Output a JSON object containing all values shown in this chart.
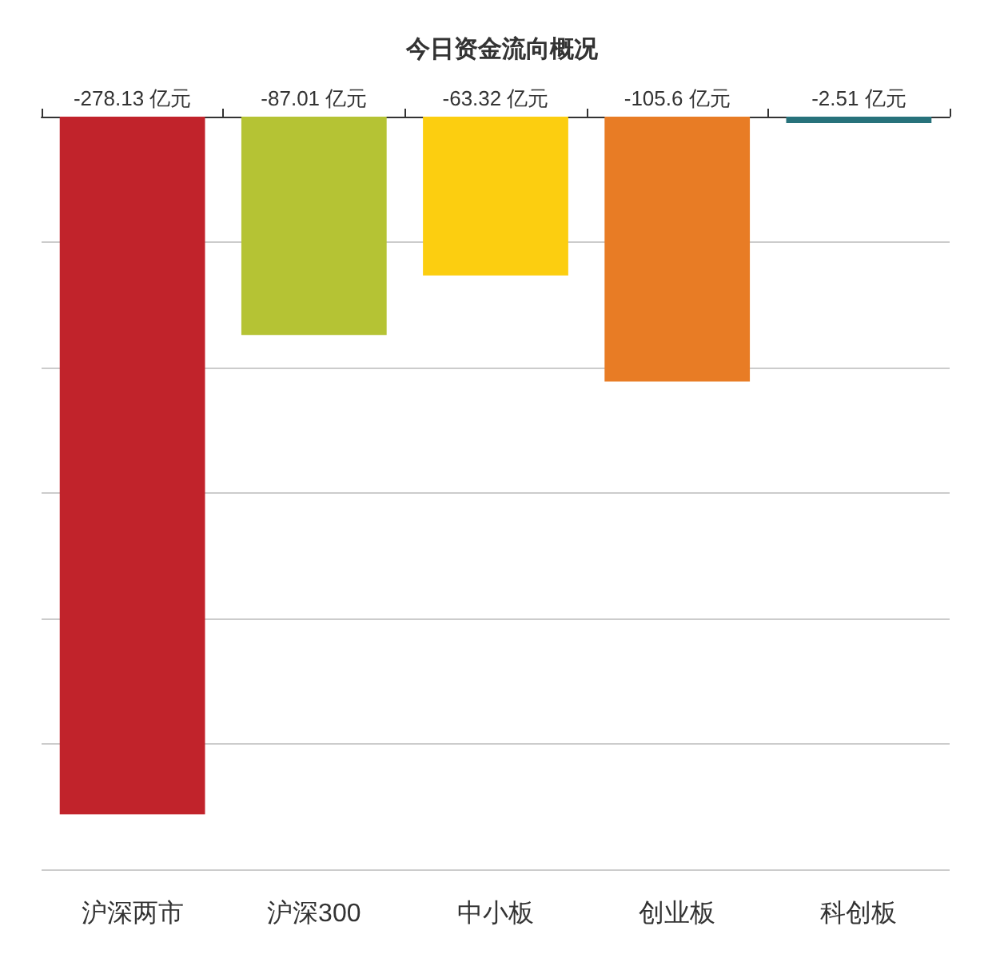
{
  "chart_data": {
    "type": "bar",
    "title": "今日资金流向概况",
    "categories": [
      "沪深两市",
      "沪深300",
      "中小板",
      "创业板",
      "科创板"
    ],
    "values": [
      -278.13,
      -87.01,
      -63.32,
      -105.6,
      -2.51
    ],
    "value_labels": [
      "-278.13 亿元",
      "-87.01 亿元",
      "-63.32 亿元",
      "-105.6 亿元",
      "-2.51 亿元"
    ],
    "colors": [
      "#c1232b",
      "#b5c334",
      "#fcce10",
      "#e87c25",
      "#27727b"
    ],
    "ylim": [
      -300,
      0
    ],
    "yticks": [
      {
        "value": -300,
        "label": null
      },
      {
        "value": -250,
        "label": null
      },
      {
        "value": -200,
        "label": null
      },
      {
        "value": -150,
        "label": null
      },
      {
        "value": -100,
        "label": null
      },
      {
        "value": -50,
        "label": null
      },
      {
        "value": 0,
        "label": null
      }
    ],
    "tick_labels": "x",
    "grid": "y"
  }
}
